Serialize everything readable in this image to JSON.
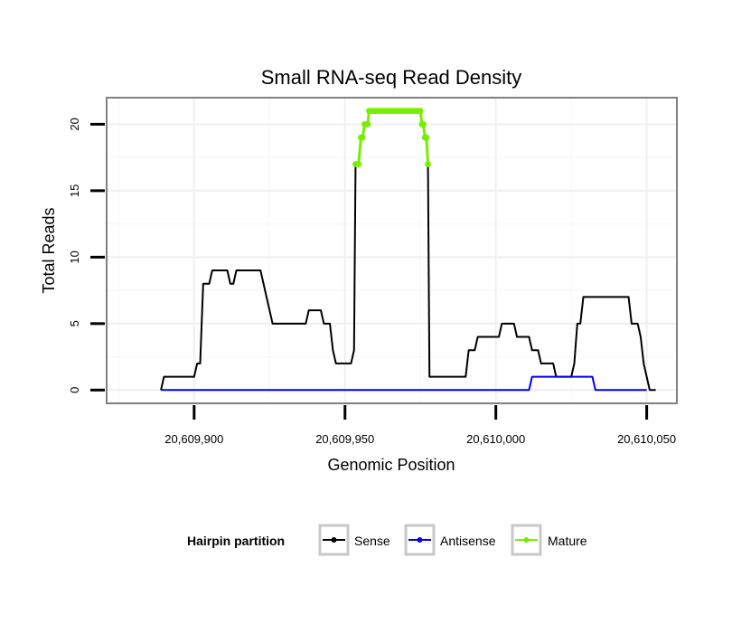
{
  "chart_data": {
    "type": "line",
    "title": "Small RNA-seq Read Density",
    "xlabel": "Genomic Position",
    "ylabel": "Total Reads",
    "xlim": [
      20609871,
      20610060
    ],
    "ylim": [
      -1,
      22
    ],
    "x_ticks": [
      20609900,
      20609950,
      20610000,
      20610050
    ],
    "x_tick_labels": [
      "20,609,900",
      "20,609,950",
      "20,610,000",
      "20,610,050"
    ],
    "y_ticks": [
      0,
      5,
      10,
      15,
      20
    ],
    "y_tick_labels": [
      "0",
      "5",
      "10",
      "15",
      "20"
    ],
    "grid": true,
    "legend": {
      "title": "Hairpin partition",
      "position": "bottom",
      "entries": [
        "Sense",
        "Antisense",
        "Mature"
      ]
    },
    "series": [
      {
        "name": "Sense",
        "color": "#000000",
        "points": [
          [
            20609889,
            0
          ],
          [
            20609890,
            1
          ],
          [
            20609899,
            1
          ],
          [
            20609900,
            1
          ],
          [
            20609901,
            2
          ],
          [
            20609902,
            2
          ],
          [
            20609903,
            8
          ],
          [
            20609905,
            8
          ],
          [
            20609906,
            9
          ],
          [
            20609911,
            9
          ],
          [
            20609912,
            8
          ],
          [
            20609913,
            8
          ],
          [
            20609914,
            9
          ],
          [
            20609922,
            9
          ],
          [
            20609923,
            8
          ],
          [
            20609926,
            5
          ],
          [
            20609937,
            5
          ],
          [
            20609938,
            6
          ],
          [
            20609942,
            6
          ],
          [
            20609943,
            5
          ],
          [
            20609945,
            5
          ],
          [
            20609946,
            3
          ],
          [
            20609947,
            2
          ],
          [
            20609952,
            2
          ],
          [
            20609953,
            3
          ],
          [
            20609953.5,
            17
          ],
          [
            20609954.5,
            17
          ],
          [
            20609955.3,
            19
          ],
          [
            20609955.8,
            19
          ],
          [
            20609956.5,
            20
          ],
          [
            20609957.5,
            20
          ],
          [
            20609958,
            21
          ],
          [
            20609975,
            21
          ],
          [
            20609975.5,
            20
          ],
          [
            20609976,
            20
          ],
          [
            20609976.5,
            19
          ],
          [
            20609977,
            19
          ],
          [
            20609977.5,
            17
          ],
          [
            20609978,
            1
          ],
          [
            20609990,
            1
          ],
          [
            20609991,
            3
          ],
          [
            20609993,
            3
          ],
          [
            20609994,
            4
          ],
          [
            20610001,
            4
          ],
          [
            20610002,
            5
          ],
          [
            20610006,
            5
          ],
          [
            20610007,
            4
          ],
          [
            20610011,
            4
          ],
          [
            20610012,
            3
          ],
          [
            20610014,
            3
          ],
          [
            20610015,
            2
          ],
          [
            20610019,
            2
          ],
          [
            20610020,
            1
          ],
          [
            20610025,
            1
          ],
          [
            20610026,
            2
          ],
          [
            20610027,
            5
          ],
          [
            20610028,
            5
          ],
          [
            20610029,
            7
          ],
          [
            20610044,
            7
          ],
          [
            20610045,
            5
          ],
          [
            20610047,
            5
          ],
          [
            20610048,
            4
          ],
          [
            20610049,
            2
          ],
          [
            20610050,
            1
          ],
          [
            20610051,
            0
          ],
          [
            20610053,
            0
          ]
        ]
      },
      {
        "name": "Antisense",
        "color": "#0000ee",
        "points": [
          [
            20609889,
            0
          ],
          [
            20610011,
            0
          ],
          [
            20610012,
            1
          ],
          [
            20610032,
            1
          ],
          [
            20610033,
            0
          ],
          [
            20610050,
            0
          ]
        ]
      },
      {
        "name": "Mature",
        "color": "#77ee00",
        "points": [
          [
            20609953.5,
            17
          ],
          [
            20609954.5,
            17
          ],
          [
            20609955.3,
            19
          ],
          [
            20609955.8,
            19
          ],
          [
            20609956.5,
            20
          ],
          [
            20609957.5,
            20
          ],
          [
            20609958,
            21
          ],
          [
            20609959,
            21
          ],
          [
            20609960,
            21
          ],
          [
            20609961,
            21
          ],
          [
            20609962,
            21
          ],
          [
            20609963,
            21
          ],
          [
            20609964,
            21
          ],
          [
            20609965,
            21
          ],
          [
            20609966,
            21
          ],
          [
            20609967,
            21
          ],
          [
            20609968,
            21
          ],
          [
            20609969,
            21
          ],
          [
            20609970,
            21
          ],
          [
            20609971,
            21
          ],
          [
            20609972,
            21
          ],
          [
            20609973,
            21
          ],
          [
            20609974,
            21
          ],
          [
            20609975,
            21
          ],
          [
            20609975.5,
            20
          ],
          [
            20609976,
            20
          ],
          [
            20609976.5,
            19
          ],
          [
            20609977,
            19
          ],
          [
            20609977.5,
            17
          ]
        ]
      }
    ]
  }
}
